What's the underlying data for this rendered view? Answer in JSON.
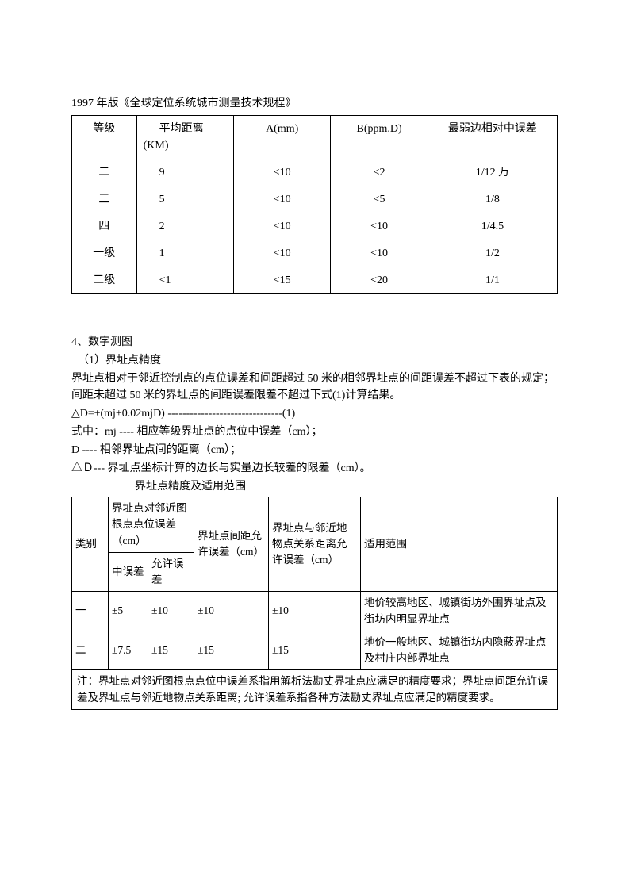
{
  "doc_title": "1997 年版《全球定位系统城市测量技术规程》",
  "table1": {
    "headers": {
      "grade": "等级",
      "avg_dist": "平均距离",
      "avg_dist_unit": "(KM)",
      "a": "A(mm)",
      "b": "B(ppm.D)",
      "err": "最弱边相对中误差"
    },
    "rows": [
      {
        "grade": "二",
        "dist": "9",
        "a": "<10",
        "b": "<2",
        "err": "1/12 万"
      },
      {
        "grade": "三",
        "dist": "5",
        "a": "<10",
        "b": "<5",
        "err": "1/8"
      },
      {
        "grade": "四",
        "dist": "2",
        "a": "<10",
        "b": "<10",
        "err": "1/4.5"
      },
      {
        "grade": "一级",
        "dist": "1",
        "a": "<10",
        "b": "<10",
        "err": "1/2"
      },
      {
        "grade": "二级",
        "dist": "<1",
        "a": "<15",
        "b": "<20",
        "err": "1/1"
      }
    ]
  },
  "section4": {
    "heading": "4、数字测图",
    "sub1": "（1）界址点精度",
    "para1": "界址点相对于邻近控制点的点位误差和间距超过 50 米的相邻界址点的间距误差不超过下表的规定；间距未超过 50 米的界址点的间距误差限差不超过下式(1)计算结果。",
    "formula": "△D=±(mj+0.02mjD) -------------------------------(1)",
    "desc1": "式中：mj ---- 相应等级界址点的点位中误差（cm）；",
    "desc2": "D  ---- 相邻界址点间的距离（cm）；",
    "desc3": "△Ｄ--- 界址点坐标计算的边长与实量边长较差的限差（cm）。",
    "table2_caption": "界址点精度及适用范围"
  },
  "table2": {
    "headers": {
      "category": "类别",
      "near_root": "界址点对邻近图根点点位误差（cm）",
      "mid_err": "中误差",
      "allow_err": "允许误差",
      "dist_allow": "界址点间距允许误差（cm）",
      "rel_allow": "界址点与邻近地物点关系距离允许误差（cm）",
      "scope": "适用范围"
    },
    "rows": [
      {
        "cat": "一",
        "mid": "±5",
        "allow": "±10",
        "dist": "±10",
        "rel": "±10",
        "scope": "地价较高地区、城镇街坊外围界址点及街坊内明显界址点"
      },
      {
        "cat": "二",
        "mid": "±7.5",
        "allow": "±15",
        "dist": "±15",
        "rel": "±15",
        "scope": "地价一般地区、城镇街坊内隐蔽界址点及村庄内部界址点"
      }
    ],
    "note": "注：界址点对邻近图根点点位中误差系指用解析法勘丈界址点应满足的精度要求；界址点间距允许误差及界址点与邻近地物点关系距离; 允许误差系指各种方法勘丈界址点应满足的精度要求。"
  }
}
